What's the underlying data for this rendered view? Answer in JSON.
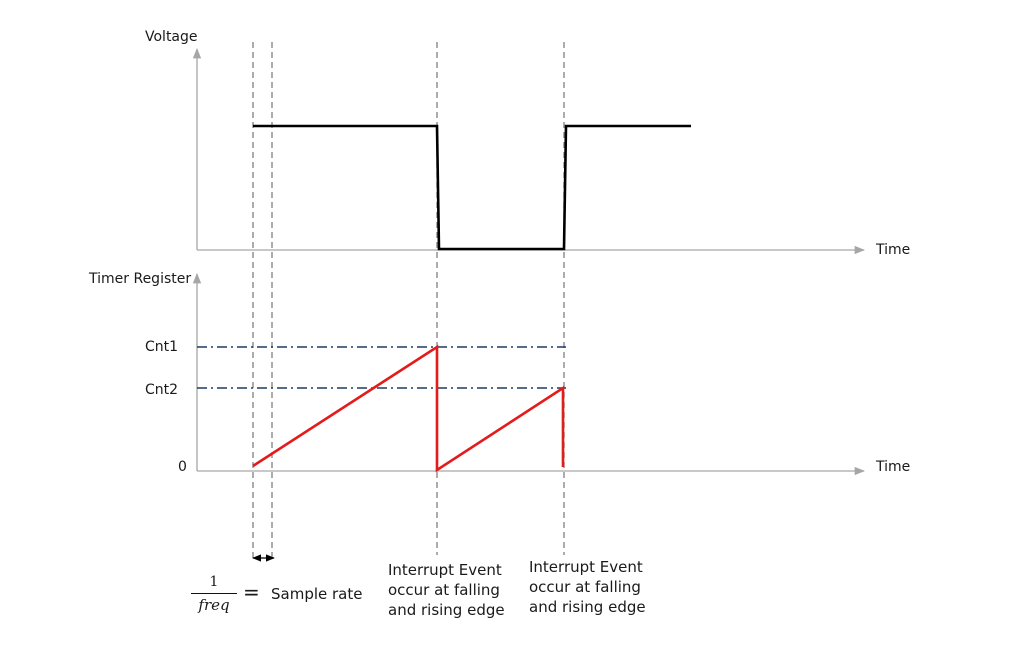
{
  "upper_axis": {
    "y_label": "Voltage",
    "x_label": "Time"
  },
  "lower_axis": {
    "y_label": "Timer Register",
    "x_label": "Time"
  },
  "register_levels": {
    "cnt1": "Cnt1",
    "cnt2": "Cnt2",
    "zero": "0"
  },
  "sample_rate": {
    "numerator": "1",
    "denominator": "freq",
    "equals": "=",
    "label": "Sample rate"
  },
  "annotations": [
    "Interrupt Event occur at falling and rising edge",
    "Interrupt Event occur at falling and rising edge"
  ],
  "colors": {
    "signal": "#000000",
    "counter": "#e31b1b",
    "level_line": "#1f3864",
    "axis": "#a6a6a6",
    "guide": "#808080"
  }
}
